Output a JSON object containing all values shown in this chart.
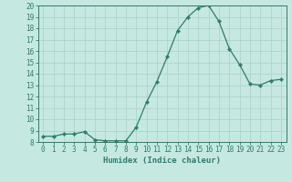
{
  "x": [
    0,
    1,
    2,
    3,
    4,
    5,
    6,
    7,
    8,
    9,
    10,
    11,
    12,
    13,
    14,
    15,
    16,
    17,
    18,
    19,
    20,
    21,
    22,
    23
  ],
  "y": [
    8.5,
    8.5,
    8.7,
    8.7,
    8.9,
    8.2,
    8.1,
    8.1,
    8.1,
    9.3,
    11.5,
    13.3,
    15.5,
    17.8,
    19.0,
    19.8,
    20.0,
    18.6,
    16.2,
    14.8,
    13.1,
    13.0,
    13.4,
    13.5
  ],
  "line_color": "#2e7d6e",
  "marker": "D",
  "marker_size": 2.2,
  "bg_color": "#c5e8e0",
  "grid_color": "#aed4cc",
  "xlabel": "Humidex (Indice chaleur)",
  "xlim": [
    -0.5,
    23.5
  ],
  "ylim": [
    8,
    20
  ],
  "yticks": [
    8,
    9,
    10,
    11,
    12,
    13,
    14,
    15,
    16,
    17,
    18,
    19,
    20
  ],
  "xticks": [
    0,
    1,
    2,
    3,
    4,
    5,
    6,
    7,
    8,
    9,
    10,
    11,
    12,
    13,
    14,
    15,
    16,
    17,
    18,
    19,
    20,
    21,
    22,
    23
  ],
  "tick_color": "#2e7d6e",
  "label_color": "#2e7d6e",
  "tick_fontsize": 5.5,
  "xlabel_fontsize": 6.5
}
